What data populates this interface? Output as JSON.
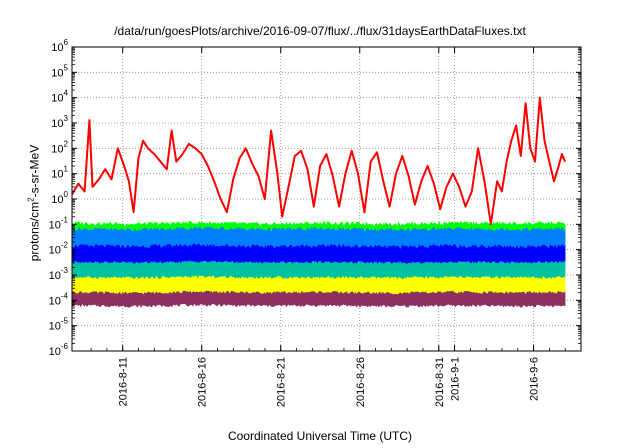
{
  "chart_data": {
    "type": "line",
    "title": "/data/run/goesPlots/archive/2016-09-07/flux/../flux/31daysEarthDataFluxes.txt",
    "xlabel": "Coordinated Universal Time (UTC)",
    "ylabel": {
      "pre": "protons/cm",
      "sup": "2",
      "post": "-s-sr-MeV"
    },
    "yscale": "log",
    "ylim": [
      1e-06,
      1000000.0
    ],
    "xlim": [
      "2016-08-07T19:00",
      "2016-09-09T00:00"
    ],
    "grid": true,
    "grid_style": "dotted",
    "legend": "none",
    "y_ticks": [
      {
        "base": "10",
        "exp": "6",
        "value": 1000000.0
      },
      {
        "base": "10",
        "exp": "5",
        "value": 100000.0
      },
      {
        "base": "10",
        "exp": "4",
        "value": 10000.0
      },
      {
        "base": "10",
        "exp": "3",
        "value": 1000.0
      },
      {
        "base": "10",
        "exp": "2",
        "value": 100.0
      },
      {
        "base": "10",
        "exp": "1",
        "value": 10.0
      },
      {
        "base": "10",
        "exp": "0",
        "value": 1.0
      },
      {
        "base": "10",
        "exp": "-1",
        "value": 0.1
      },
      {
        "base": "10",
        "exp": "-2",
        "value": 0.01
      },
      {
        "base": "10",
        "exp": "-3",
        "value": 0.001
      },
      {
        "base": "10",
        "exp": "-4",
        "value": 0.0001
      },
      {
        "base": "10",
        "exp": "-5",
        "value": 1e-05
      },
      {
        "base": "10",
        "exp": "-6",
        "value": 1e-06
      }
    ],
    "x_ticks": [
      {
        "label": "2016-8-11",
        "date": "2016-08-11"
      },
      {
        "label": "2016-8-16",
        "date": "2016-08-16"
      },
      {
        "label": "2016-8-21",
        "date": "2016-08-21"
      },
      {
        "label": "2016-8-26",
        "date": "2016-08-26"
      },
      {
        "label": "2016-8-31",
        "date": "2016-08-31"
      },
      {
        "label": "2016-9-1",
        "date": "2016-09-01"
      },
      {
        "label": "2016-9-6",
        "date": "2016-09-06"
      }
    ],
    "series": [
      {
        "color": "#8b3060",
        "style": "band",
        "upper": [
          [
            0,
            0.00035
          ],
          [
            4,
            0.00032
          ],
          [
            8,
            0.00038
          ],
          [
            12,
            0.00033
          ],
          [
            16,
            0.00035
          ],
          [
            20,
            0.00031
          ],
          [
            24,
            0.00036
          ],
          [
            28,
            0.00033
          ],
          [
            31.2,
            0.00034
          ]
        ],
        "lower": [
          [
            0,
            6.5e-05
          ],
          [
            4,
            6e-05
          ],
          [
            8,
            6.8e-05
          ],
          [
            12,
            6.2e-05
          ],
          [
            16,
            6.5e-05
          ],
          [
            20,
            6e-05
          ],
          [
            24,
            6.4e-05
          ],
          [
            28,
            6.1e-05
          ],
          [
            31.2,
            6.2e-05
          ]
        ]
      },
      {
        "color": "#ffff00",
        "style": "band",
        "upper": [
          [
            0,
            0.0013
          ],
          [
            4,
            0.0011
          ],
          [
            8,
            0.0014
          ],
          [
            12,
            0.0012
          ],
          [
            16,
            0.0013
          ],
          [
            20,
            0.0011
          ],
          [
            24,
            0.0013
          ],
          [
            28,
            0.0012
          ],
          [
            31.2,
            0.0013
          ]
        ],
        "lower": [
          [
            0,
            0.00022
          ],
          [
            4,
            0.0002
          ],
          [
            8,
            0.00023
          ],
          [
            12,
            0.00021
          ],
          [
            16,
            0.00022
          ],
          [
            20,
            0.0002
          ],
          [
            24,
            0.00022
          ],
          [
            28,
            0.00021
          ],
          [
            31.2,
            0.00021
          ]
        ]
      },
      {
        "color": "#00c2a0",
        "style": "band",
        "upper": [
          [
            0,
            0.006
          ],
          [
            4,
            0.005
          ],
          [
            8,
            0.0065
          ],
          [
            12,
            0.0055
          ],
          [
            16,
            0.006
          ],
          [
            20,
            0.0052
          ],
          [
            24,
            0.006
          ],
          [
            28,
            0.0055
          ],
          [
            31.2,
            0.0058
          ]
        ],
        "lower": [
          [
            0,
            0.00085
          ],
          [
            4,
            0.0008
          ],
          [
            8,
            0.0009
          ],
          [
            12,
            0.00082
          ],
          [
            16,
            0.00085
          ],
          [
            20,
            0.0008
          ],
          [
            24,
            0.00085
          ],
          [
            28,
            0.00082
          ],
          [
            31.2,
            0.00083
          ]
        ]
      },
      {
        "color": "#00ff00",
        "style": "band",
        "upper": [
          [
            0,
            0.11
          ],
          [
            4,
            0.1
          ],
          [
            8,
            0.115
          ],
          [
            12,
            0.1
          ],
          [
            16,
            0.11
          ],
          [
            20,
            0.1
          ],
          [
            24,
            0.11
          ],
          [
            28,
            0.105
          ],
          [
            31.2,
            0.11
          ]
        ],
        "lower": [
          [
            0,
            0.005
          ],
          [
            4,
            0.0045
          ],
          [
            8,
            0.0052
          ],
          [
            12,
            0.0048
          ],
          [
            16,
            0.005
          ],
          [
            20,
            0.0046
          ],
          [
            24,
            0.005
          ],
          [
            28,
            0.0048
          ],
          [
            31.2,
            0.0049
          ]
        ]
      },
      {
        "color": "#0080ff",
        "style": "band",
        "upper": [
          [
            0,
            0.065
          ],
          [
            4,
            0.06
          ],
          [
            8,
            0.07
          ],
          [
            12,
            0.062
          ],
          [
            16,
            0.065
          ],
          [
            20,
            0.06
          ],
          [
            24,
            0.065
          ],
          [
            28,
            0.062
          ],
          [
            31.2,
            0.064
          ]
        ],
        "lower": [
          [
            0,
            0.0035
          ],
          [
            4,
            0.0032
          ],
          [
            8,
            0.0036
          ],
          [
            12,
            0.0033
          ],
          [
            16,
            0.0035
          ],
          [
            20,
            0.0032
          ],
          [
            24,
            0.0035
          ],
          [
            28,
            0.0033
          ],
          [
            31.2,
            0.0034
          ]
        ]
      },
      {
        "color": "#0000ff",
        "style": "band",
        "upper": [
          [
            0,
            0.014
          ],
          [
            4,
            0.013
          ],
          [
            8,
            0.015
          ],
          [
            12,
            0.013
          ],
          [
            16,
            0.014
          ],
          [
            20,
            0.0125
          ],
          [
            24,
            0.014
          ],
          [
            28,
            0.013
          ],
          [
            31.2,
            0.0135
          ]
        ],
        "lower": [
          [
            0,
            0.0035
          ],
          [
            4,
            0.0032
          ],
          [
            8,
            0.0036
          ],
          [
            12,
            0.0033
          ],
          [
            16,
            0.0034
          ],
          [
            20,
            0.0032
          ],
          [
            24,
            0.0034
          ],
          [
            28,
            0.0033
          ],
          [
            31.2,
            0.0034
          ]
        ]
      },
      {
        "color": "#ff0000",
        "style": "line",
        "points": [
          [
            0,
            1.5
          ],
          [
            0.4,
            4
          ],
          [
            0.8,
            2
          ],
          [
            1.1,
            1300
          ],
          [
            1.3,
            3
          ],
          [
            1.7,
            6
          ],
          [
            2.1,
            15
          ],
          [
            2.5,
            6
          ],
          [
            2.9,
            100
          ],
          [
            3.3,
            20
          ],
          [
            3.6,
            5
          ],
          [
            3.9,
            0.3
          ],
          [
            4.2,
            40
          ],
          [
            4.5,
            200
          ],
          [
            4.8,
            100
          ],
          [
            5.2,
            60
          ],
          [
            5.6,
            30
          ],
          [
            6.0,
            15
          ],
          [
            6.3,
            500
          ],
          [
            6.6,
            30
          ],
          [
            7.0,
            60
          ],
          [
            7.4,
            150
          ],
          [
            7.8,
            100
          ],
          [
            8.2,
            60
          ],
          [
            8.6,
            20
          ],
          [
            9.0,
            5
          ],
          [
            9.4,
            1
          ],
          [
            9.8,
            0.3
          ],
          [
            10.2,
            6
          ],
          [
            10.6,
            40
          ],
          [
            11.0,
            100
          ],
          [
            11.4,
            25
          ],
          [
            11.8,
            8
          ],
          [
            12.2,
            1
          ],
          [
            12.6,
            500
          ],
          [
            13.0,
            10
          ],
          [
            13.3,
            0.2
          ],
          [
            13.7,
            3
          ],
          [
            14.1,
            50
          ],
          [
            14.5,
            80
          ],
          [
            14.9,
            15
          ],
          [
            15.3,
            0.5
          ],
          [
            15.7,
            20
          ],
          [
            16.1,
            60
          ],
          [
            16.5,
            8
          ],
          [
            16.9,
            0.5
          ],
          [
            17.3,
            10
          ],
          [
            17.7,
            80
          ],
          [
            18.1,
            10
          ],
          [
            18.5,
            0.3
          ],
          [
            18.9,
            30
          ],
          [
            19.3,
            70
          ],
          [
            19.7,
            5
          ],
          [
            20.1,
            0.5
          ],
          [
            20.5,
            10
          ],
          [
            20.9,
            50
          ],
          [
            21.3,
            8
          ],
          [
            21.7,
            0.6
          ],
          [
            22.1,
            5
          ],
          [
            22.5,
            20
          ],
          [
            22.9,
            4
          ],
          [
            23.3,
            0.4
          ],
          [
            23.7,
            3
          ],
          [
            24.1,
            10
          ],
          [
            24.5,
            3
          ],
          [
            24.9,
            0.5
          ],
          [
            25.3,
            2
          ],
          [
            25.7,
            100
          ],
          [
            26.1,
            5
          ],
          [
            26.5,
            0.1
          ],
          [
            26.9,
            5
          ],
          [
            27.2,
            2
          ],
          [
            27.5,
            30
          ],
          [
            27.8,
            200
          ],
          [
            28.1,
            800
          ],
          [
            28.4,
            50
          ],
          [
            28.7,
            6000
          ],
          [
            29.0,
            100
          ],
          [
            29.3,
            30
          ],
          [
            29.6,
            10000
          ],
          [
            29.9,
            200
          ],
          [
            30.2,
            30
          ],
          [
            30.5,
            5
          ],
          [
            30.8,
            20
          ],
          [
            31.0,
            60
          ],
          [
            31.2,
            30
          ]
        ]
      }
    ]
  }
}
